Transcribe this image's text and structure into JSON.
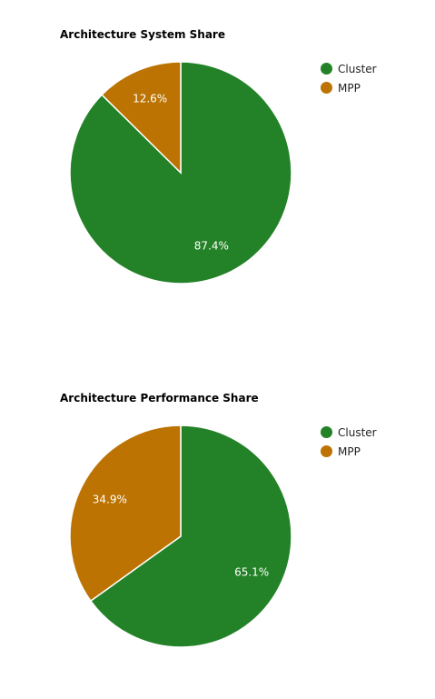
{
  "chart_data": [
    {
      "type": "pie",
      "title": "Architecture System Share",
      "categories": [
        "Cluster",
        "MPP"
      ],
      "values": [
        87.4,
        12.6
      ],
      "value_labels": [
        "87.4%",
        "12.6%"
      ],
      "colors": [
        "#238227",
        "#bc7301"
      ],
      "legend_position": "right"
    },
    {
      "type": "pie",
      "title": "Architecture Performance Share",
      "categories": [
        "Cluster",
        "MPP"
      ],
      "values": [
        65.1,
        34.9
      ],
      "value_labels": [
        "65.1%",
        "34.9%"
      ],
      "colors": [
        "#238227",
        "#bc7301"
      ],
      "legend_position": "right"
    }
  ]
}
